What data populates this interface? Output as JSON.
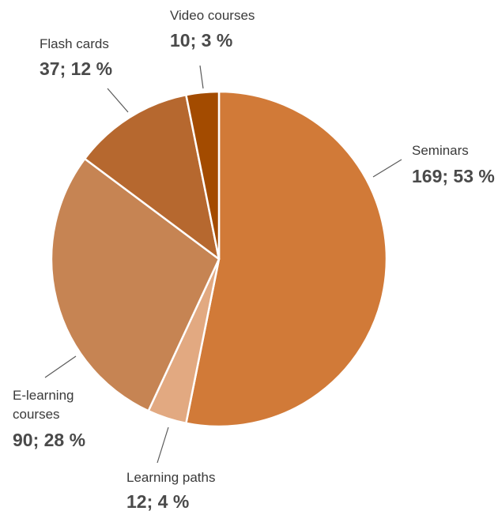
{
  "chart_data": {
    "type": "pie",
    "slices": [
      {
        "label": "Seminars",
        "value": 169,
        "percent": "53 %",
        "color": "#D17A38"
      },
      {
        "label": "Learning paths",
        "value": 12,
        "percent": "4 %",
        "color": "#E2A981"
      },
      {
        "label": "E-learning courses",
        "value": 90,
        "percent": "28 %",
        "color": "#C68453"
      },
      {
        "label": "Flash cards",
        "value": 37,
        "percent": "12 %",
        "color": "#B6682F"
      },
      {
        "label": "Video courses",
        "value": 10,
        "percent": "3 %",
        "color": "#A34B00"
      }
    ]
  }
}
